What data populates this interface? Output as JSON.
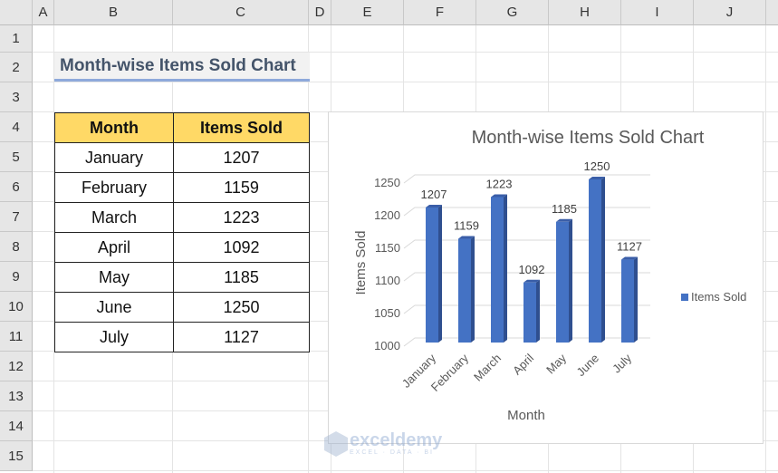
{
  "sheet": {
    "columns": [
      "A",
      "B",
      "C",
      "D",
      "E",
      "F",
      "G",
      "H",
      "I",
      "J"
    ],
    "rows": [
      "1",
      "2",
      "3",
      "4",
      "5",
      "6",
      "7",
      "8",
      "9",
      "10",
      "11",
      "12",
      "13",
      "14",
      "15"
    ]
  },
  "title": "Month-wise Items Sold Chart",
  "table": {
    "headers": [
      "Month",
      "Items Sold"
    ],
    "rows": [
      [
        "January",
        "1207"
      ],
      [
        "February",
        "1159"
      ],
      [
        "March",
        "1223"
      ],
      [
        "April",
        "1092"
      ],
      [
        "May",
        "1185"
      ],
      [
        "June",
        "1250"
      ],
      [
        "July",
        "1127"
      ]
    ]
  },
  "watermark": {
    "name": "exceldemy",
    "tagline": "EXCEL · DATA · BI"
  },
  "chart_data": {
    "type": "bar",
    "style": "3d-column",
    "title": "Month-wise Items Sold Chart",
    "xlabel": "Month",
    "ylabel": "Items Sold",
    "categories": [
      "January",
      "February",
      "March",
      "April",
      "May",
      "June",
      "July"
    ],
    "series": [
      {
        "name": "Items Sold",
        "values": [
          1207,
          1159,
          1223,
          1092,
          1185,
          1250,
          1127
        ],
        "color": "#4472c4"
      }
    ],
    "ylim": [
      1000,
      1250
    ],
    "yticks": [
      "1000",
      "1050",
      "1100",
      "1150",
      "1200",
      "1250"
    ],
    "grid": true,
    "legend": "right",
    "data_labels": true
  }
}
